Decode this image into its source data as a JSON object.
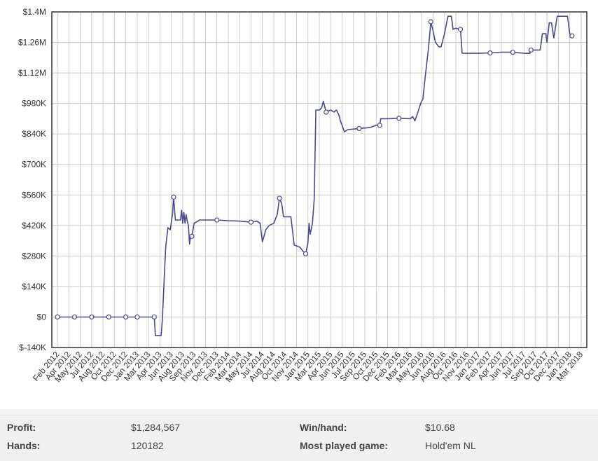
{
  "chart_data": {
    "type": "line",
    "title": "",
    "xlabel": "",
    "ylabel": "",
    "ylim": [
      -140000,
      1400000
    ],
    "y_ticks": [
      "$-140K",
      "$0",
      "$140K",
      "$280K",
      "$420K",
      "$560K",
      "$700K",
      "$840K",
      "$980K",
      "$1.12M",
      "$1.26M",
      "$1.4M"
    ],
    "x_ticks": [
      "Feb 2012",
      "Apr 2012",
      "May 2012",
      "Jul 2012",
      "Aug 2012",
      "Oct 2012",
      "Dec 2012",
      "Jan 2013",
      "Mar 2013",
      "Apr 2013",
      "Jun 2013",
      "Aug 2013",
      "Sep 2013",
      "Nov 2013",
      "Dec 2013",
      "Feb 2014",
      "Mar 2014",
      "May 2014",
      "Jul 2014",
      "Aug 2014",
      "Oct 2014",
      "Nov 2014",
      "Jan 2015",
      "Mar 2015",
      "Apr 2015",
      "Jun 2015",
      "Jul 2015",
      "Sep 2015",
      "Oct 2015",
      "Dec 2015",
      "Feb 2016",
      "Mar 2016",
      "May 2016",
      "Jun 2016",
      "Aug 2016",
      "Oct 2016",
      "Nov 2016",
      "Jan 2017",
      "Feb 2017",
      "Apr 2017",
      "Jun 2017",
      "Jul 2017",
      "Sep 2017",
      "Oct 2017",
      "Dec 2017",
      "Jan 2018",
      "Mar 2018"
    ],
    "grid": true,
    "legend": "none",
    "colors": {
      "line": "#4a4a8c",
      "marker_fill": "#ffffff",
      "grid": "#cccccc",
      "axis": "#333333"
    },
    "series": [
      {
        "points": [
          [
            0.0,
            0
          ],
          [
            1.5,
            0
          ],
          [
            3.0,
            0
          ],
          [
            4.5,
            0
          ],
          [
            6.0,
            0
          ],
          [
            7.0,
            0
          ],
          [
            8.5,
            0
          ],
          [
            8.6,
            -85000
          ],
          [
            9.1,
            -85000
          ],
          [
            9.2,
            -20000
          ],
          [
            9.5,
            320000
          ],
          [
            9.7,
            410000
          ],
          [
            9.9,
            400000
          ],
          [
            10.1,
            470000
          ],
          [
            10.2,
            550000
          ],
          [
            10.35,
            445000
          ],
          [
            10.8,
            445000
          ],
          [
            10.9,
            490000
          ],
          [
            11.0,
            430000
          ],
          [
            11.1,
            480000
          ],
          [
            11.2,
            430000
          ],
          [
            11.3,
            470000
          ],
          [
            11.4,
            440000
          ],
          [
            11.5,
            420000
          ],
          [
            11.6,
            335000
          ],
          [
            11.7,
            370000
          ],
          [
            11.8,
            370000
          ],
          [
            12.0,
            430000
          ],
          [
            12.5,
            445000
          ],
          [
            13.0,
            445000
          ],
          [
            14.0,
            445000
          ],
          [
            15.0,
            442000
          ],
          [
            16.0,
            440000
          ],
          [
            17.0,
            435000
          ],
          [
            17.5,
            440000
          ],
          [
            17.8,
            430000
          ],
          [
            18.0,
            345000
          ],
          [
            18.3,
            400000
          ],
          [
            18.6,
            420000
          ],
          [
            19.0,
            430000
          ],
          [
            19.3,
            470000
          ],
          [
            19.5,
            545000
          ],
          [
            19.7,
            520000
          ],
          [
            19.85,
            460000
          ],
          [
            20.5,
            460000
          ],
          [
            20.8,
            330000
          ],
          [
            21.3,
            320000
          ],
          [
            21.6,
            300000
          ],
          [
            21.8,
            290000
          ],
          [
            22.0,
            340000
          ],
          [
            22.1,
            430000
          ],
          [
            22.2,
            380000
          ],
          [
            22.4,
            430000
          ],
          [
            22.55,
            540000
          ],
          [
            22.7,
            950000
          ],
          [
            23.0,
            950000
          ],
          [
            23.2,
            960000
          ],
          [
            23.35,
            990000
          ],
          [
            23.6,
            940000
          ],
          [
            24.0,
            950000
          ],
          [
            24.3,
            940000
          ],
          [
            24.5,
            950000
          ],
          [
            24.7,
            930000
          ],
          [
            24.85,
            900000
          ],
          [
            25.0,
            880000
          ],
          [
            25.2,
            850000
          ],
          [
            25.5,
            860000
          ],
          [
            26.5,
            865000
          ],
          [
            27.5,
            870000
          ],
          [
            28.0,
            880000
          ],
          [
            28.3,
            880000
          ],
          [
            28.4,
            910000
          ],
          [
            29.0,
            910000
          ],
          [
            30.0,
            912000
          ],
          [
            31.0,
            910000
          ],
          [
            31.2,
            920000
          ],
          [
            31.4,
            900000
          ],
          [
            31.6,
            930000
          ],
          [
            31.9,
            980000
          ],
          [
            32.1,
            1000000
          ],
          [
            32.3,
            1100000
          ],
          [
            32.6,
            1240000
          ],
          [
            32.8,
            1355000
          ],
          [
            33.0,
            1310000
          ],
          [
            33.2,
            1260000
          ],
          [
            33.5,
            1240000
          ],
          [
            33.7,
            1240000
          ],
          [
            34.0,
            1300000
          ],
          [
            34.3,
            1380000
          ],
          [
            34.6,
            1380000
          ],
          [
            34.75,
            1320000
          ],
          [
            35.0,
            1325000
          ],
          [
            35.4,
            1320000
          ],
          [
            35.55,
            1210000
          ],
          [
            36.0,
            1210000
          ],
          [
            37.0,
            1210000
          ],
          [
            38.0,
            1212000
          ],
          [
            39.0,
            1215000
          ],
          [
            40.0,
            1215000
          ],
          [
            41.0,
            1210000
          ],
          [
            41.5,
            1210000
          ],
          [
            41.6,
            1225000
          ],
          [
            42.4,
            1225000
          ],
          [
            42.6,
            1300000
          ],
          [
            42.9,
            1300000
          ],
          [
            43.0,
            1260000
          ],
          [
            43.2,
            1350000
          ],
          [
            43.4,
            1350000
          ],
          [
            43.6,
            1280000
          ],
          [
            43.9,
            1380000
          ],
          [
            44.6,
            1380000
          ],
          [
            44.8,
            1380000
          ],
          [
            45.0,
            1300000
          ],
          [
            45.2,
            1290000
          ]
        ],
        "markers": [
          [
            0.0,
            0
          ],
          [
            1.5,
            0
          ],
          [
            3.0,
            0
          ],
          [
            4.5,
            0
          ],
          [
            6.0,
            0
          ],
          [
            7.0,
            0
          ],
          [
            8.5,
            0
          ],
          [
            10.2,
            550000
          ],
          [
            11.8,
            370000
          ],
          [
            14.0,
            445000
          ],
          [
            17.0,
            435000
          ],
          [
            19.5,
            545000
          ],
          [
            21.8,
            290000
          ],
          [
            23.6,
            940000
          ],
          [
            26.5,
            865000
          ],
          [
            28.3,
            880000
          ],
          [
            30.0,
            912000
          ],
          [
            32.8,
            1355000
          ],
          [
            35.4,
            1320000
          ],
          [
            38.0,
            1212000
          ],
          [
            40.0,
            1215000
          ],
          [
            41.6,
            1225000
          ],
          [
            45.2,
            1290000
          ]
        ]
      }
    ]
  },
  "stats": {
    "profit_label": "Profit:",
    "profit_value": "$1,284,567",
    "hands_label": "Hands:",
    "hands_value": "120182",
    "winhand_label": "Win/hand:",
    "winhand_value": "$10.68",
    "game_label": "Most played game:",
    "game_value": "Hold'em NL"
  }
}
